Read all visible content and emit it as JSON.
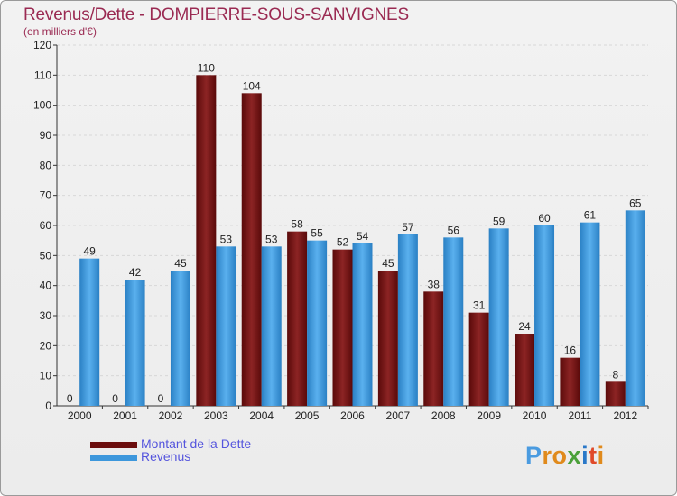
{
  "title": "Revenus/Dette - DOMPIERRE-SOUS-SANVIGNES",
  "subtitle": "(en milliers d'€)",
  "brand": {
    "letters": [
      "P",
      "r",
      "o",
      "x",
      "i",
      "t",
      "i"
    ],
    "colors": [
      "#4a9be0",
      "#e08a1c",
      "#e08a1c",
      "#4ba03a",
      "#2a78c8",
      "#e04a2a",
      "#e08a1c"
    ]
  },
  "legend": [
    {
      "label": "Montant de la Dette",
      "color": "#6b0d0d"
    },
    {
      "label": "Revenus",
      "color": "#3d97dc"
    }
  ],
  "chart_data": {
    "type": "bar",
    "categories": [
      "2000",
      "2001",
      "2002",
      "2003",
      "2004",
      "2005",
      "2006",
      "2007",
      "2008",
      "2009",
      "2010",
      "2011",
      "2012"
    ],
    "series": [
      {
        "name": "Montant de la Dette",
        "color": "#7a1515",
        "values": [
          0,
          0,
          0,
          110,
          104,
          58,
          52,
          45,
          38,
          31,
          24,
          16,
          8
        ]
      },
      {
        "name": "Revenus",
        "color": "#3d97dc",
        "values": [
          49,
          42,
          45,
          53,
          53,
          55,
          54,
          57,
          56,
          59,
          60,
          61,
          65
        ]
      }
    ],
    "ylim": [
      0,
      120
    ],
    "yticks": [
      0,
      10,
      20,
      30,
      40,
      50,
      60,
      70,
      80,
      90,
      100,
      110,
      120
    ],
    "grid": true,
    "legend_position": "bottom-left"
  }
}
